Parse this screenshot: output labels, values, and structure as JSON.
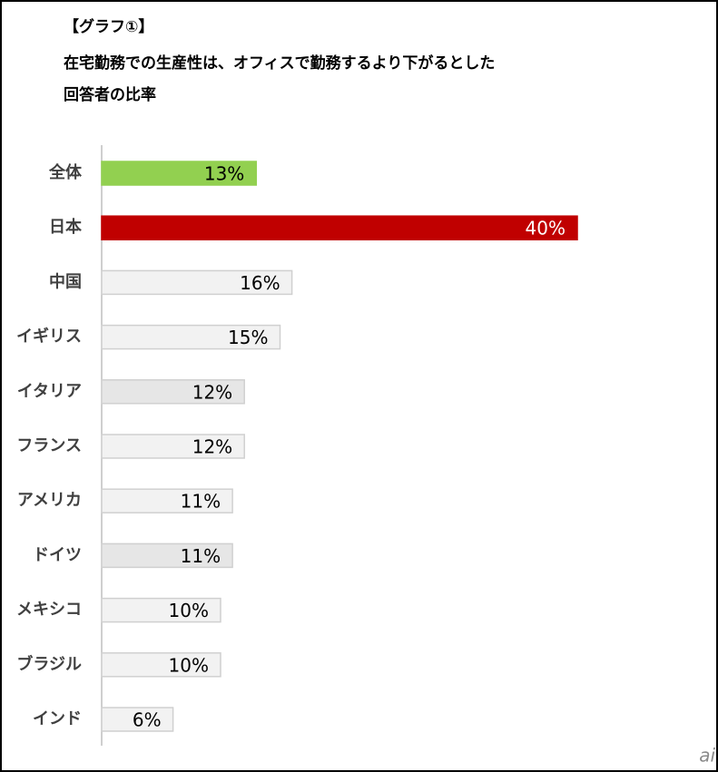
{
  "chart_data": {
    "type": "hbar",
    "title_lines": [
      "【グラフ①】",
      "在宅勤務での生産性は、オフィスで勤務するより下がるとした",
      "回答者の比率"
    ],
    "categories": [
      "全体",
      "日本",
      "中国",
      "イギリス",
      "イタリア",
      "フランス",
      "アメリカ",
      "ドイツ",
      "メキシコ",
      "ブラジル",
      "インド"
    ],
    "values": [
      13,
      40,
      16,
      15,
      12,
      12,
      11,
      11,
      10,
      10,
      6
    ],
    "value_labels": [
      "13%",
      "40%",
      "16%",
      "15%",
      "12%",
      "12%",
      "11%",
      "11%",
      "10%",
      "10%",
      "6%"
    ],
    "colors": [
      "#92d050",
      "#c00000",
      "#f2f2f2",
      "#f2f2f2",
      "#e6e6e6",
      "#f2f2f2",
      "#f2f2f2",
      "#e6e6e6",
      "#f2f2f2",
      "#f2f2f2",
      "#f2f2f2"
    ],
    "xlim": [
      0,
      40
    ],
    "watermark": "ai"
  }
}
